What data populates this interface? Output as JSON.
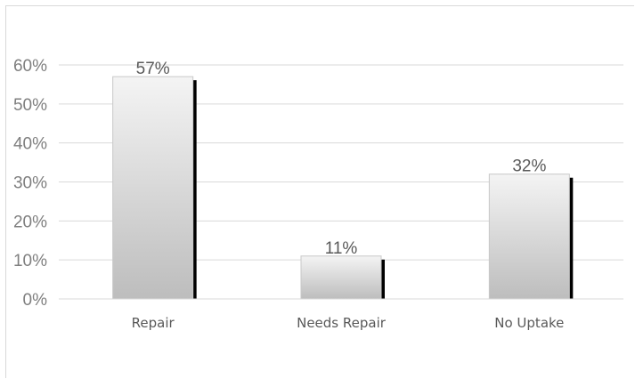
{
  "chart_data": {
    "type": "bar",
    "categories": [
      "Repair",
      "Needs Repair",
      "No Uptake"
    ],
    "values": [
      57,
      11,
      32
    ],
    "data_labels": [
      "57%",
      "11%",
      "32%"
    ],
    "title": "",
    "xlabel": "",
    "ylabel": "",
    "ylim": [
      0,
      60
    ],
    "y_ticks": [
      0,
      10,
      20,
      30,
      40,
      50,
      60
    ],
    "y_tick_labels": [
      "0%",
      "10%",
      "20%",
      "30%",
      "40%",
      "50%",
      "60%"
    ],
    "grid": true,
    "legend": "none",
    "colors": {
      "bar_light": "#f4f4f4",
      "bar_dark": "#bdbdbd",
      "bar_shadow": "#000000",
      "gridline": "#d9d9d9"
    }
  }
}
